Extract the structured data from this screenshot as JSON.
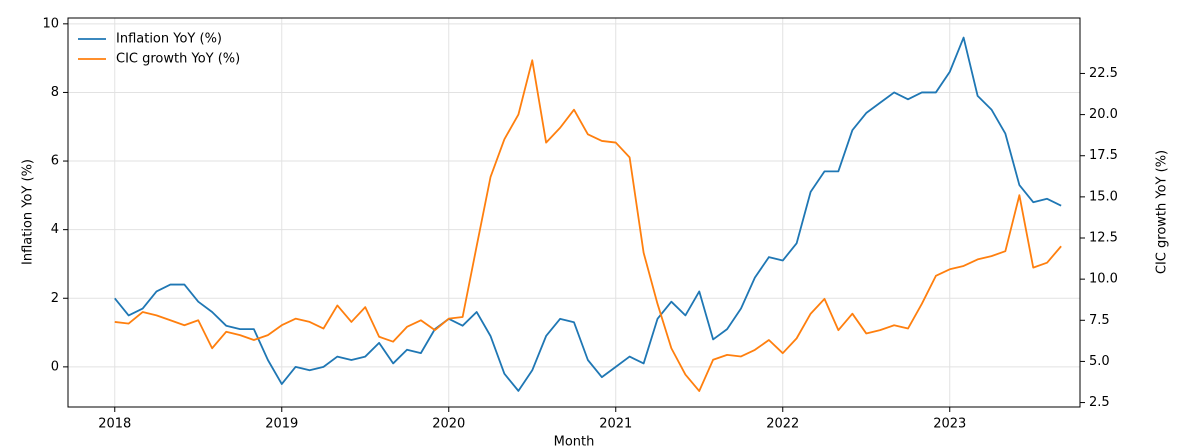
{
  "chart_data": {
    "type": "line",
    "x_label": "Month",
    "y_label": "Inflation YoY (%)",
    "y2_label": "CIC growth YoY (%)",
    "x": [
      2018,
      2018.083,
      2018.167,
      2018.25,
      2018.333,
      2018.417,
      2018.5,
      2018.583,
      2018.667,
      2018.75,
      2018.833,
      2018.917,
      2019,
      2019.083,
      2019.167,
      2019.25,
      2019.333,
      2019.417,
      2019.5,
      2019.583,
      2019.667,
      2019.75,
      2019.833,
      2019.917,
      2020,
      2020.083,
      2020.167,
      2020.25,
      2020.333,
      2020.417,
      2020.5,
      2020.583,
      2020.667,
      2020.75,
      2020.833,
      2020.917,
      2021,
      2021.083,
      2021.167,
      2021.25,
      2021.333,
      2021.417,
      2021.5,
      2021.583,
      2021.667,
      2021.75,
      2021.833,
      2021.917,
      2022,
      2022.083,
      2022.167,
      2022.25,
      2022.333,
      2022.417,
      2022.5,
      2022.583,
      2022.667,
      2022.75,
      2022.833,
      2022.917,
      2023,
      2023.083,
      2023.167,
      2023.25,
      2023.333,
      2023.417,
      2023.5,
      2023.583,
      2023.667
    ],
    "series": [
      {
        "name": "Inflation YoY (%)",
        "color": "#1f77b4",
        "values": [
          2.0,
          1.5,
          1.7,
          2.2,
          2.4,
          2.4,
          1.9,
          1.6,
          1.2,
          1.1,
          1.1,
          0.2,
          -0.5,
          0.0,
          -0.1,
          0.0,
          0.3,
          0.2,
          0.3,
          0.7,
          0.1,
          0.5,
          0.4,
          1.1,
          1.4,
          1.2,
          1.6,
          0.9,
          -0.2,
          -0.7,
          -0.1,
          0.9,
          1.4,
          1.3,
          0.2,
          -0.3,
          0.0,
          0.3,
          0.1,
          1.4,
          1.9,
          1.5,
          2.2,
          0.8,
          1.1,
          1.7,
          2.6,
          3.2,
          3.1,
          3.6,
          5.1,
          5.7,
          5.7,
          6.9,
          7.4,
          7.7,
          8.0,
          7.8,
          8.0,
          8.0,
          8.6,
          9.6,
          7.9,
          7.5,
          6.8,
          5.3,
          4.8,
          4.9,
          4.7
        ]
      },
      {
        "name": "CIC growth YoY (%)",
        "color": "#ff7f0e",
        "axis": "y2",
        "values": [
          7.4,
          7.3,
          8.0,
          7.8,
          7.5,
          7.2,
          7.5,
          5.8,
          6.8,
          6.6,
          6.3,
          6.6,
          7.2,
          7.6,
          7.4,
          7.0,
          8.4,
          7.4,
          8.3,
          6.5,
          6.2,
          7.1,
          7.5,
          6.9,
          7.6,
          7.7,
          12.0,
          16.2,
          18.5,
          20.0,
          23.3,
          18.3,
          19.2,
          20.3,
          18.8,
          18.4,
          18.3,
          17.4,
          11.6,
          8.5,
          5.8,
          4.2,
          3.2,
          5.1,
          5.4,
          5.3,
          5.7,
          6.3,
          5.5,
          6.4,
          7.9,
          8.8,
          6.9,
          7.9,
          6.7,
          6.9,
          7.2,
          7.0,
          8.5,
          10.2,
          10.6,
          10.8,
          11.2,
          11.4,
          11.7,
          15.1,
          10.7,
          11.0,
          12.0
        ]
      }
    ],
    "xlim": [
      2017.72,
      2023.78
    ],
    "xticks": [
      2018,
      2019,
      2020,
      2021,
      2022,
      2023
    ],
    "ylim": [
      -1.17,
      10.17
    ],
    "yticks": [
      0,
      2,
      4,
      6,
      8,
      10
    ],
    "y2lim": [
      2.23,
      25.87
    ],
    "y2ticks": [
      2.5,
      {
        "value": 5,
        "label": "5.0"
      },
      7.5,
      {
        "value": 10,
        "label": "10.0"
      },
      12.5,
      {
        "value": 15,
        "label": "15.0"
      },
      17.5,
      {
        "value": 20,
        "label": "20.0"
      },
      22.5
    ],
    "grid": true,
    "legend": "upper left"
  }
}
